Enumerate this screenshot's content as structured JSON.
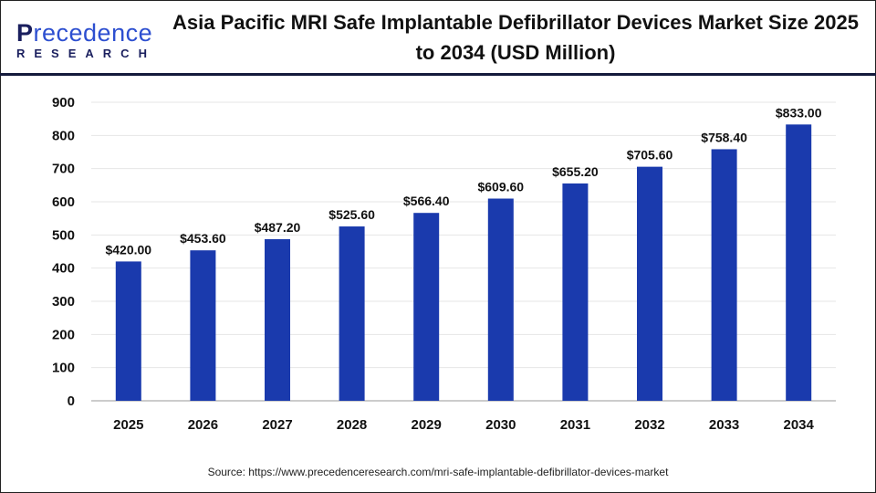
{
  "logo": {
    "line1_first": "P",
    "line1_rest": "recedence",
    "line2": "RESEARCH"
  },
  "title": "Asia Pacific MRI Safe Implantable Defibrillator Devices Market Size 2025 to 2034 (USD Million)",
  "source": "Source: https://www.precedenceresearch.com/mri-safe-implantable-defibrillator-devices-market",
  "colors": {
    "bar": "#1a3aad",
    "header_line": "#141a3c"
  },
  "chart_data": {
    "type": "bar",
    "title": "Asia Pacific MRI Safe Implantable Defibrillator Devices Market Size 2025 to 2034 (USD Million)",
    "categories": [
      "2025",
      "2026",
      "2027",
      "2028",
      "2029",
      "2030",
      "2031",
      "2032",
      "2033",
      "2034"
    ],
    "values": [
      420.0,
      453.6,
      487.2,
      525.6,
      566.4,
      609.6,
      655.2,
      705.6,
      758.4,
      833.0
    ],
    "data_labels": [
      "$420.00",
      "$453.60",
      "$487.20",
      "$525.60",
      "$566.40",
      "$609.60",
      "$655.20",
      "$705.60",
      "$758.40",
      "$833.00"
    ],
    "xlabel": "",
    "ylabel": "",
    "ylim": [
      0,
      900
    ],
    "yticks": [
      0,
      100,
      200,
      300,
      400,
      500,
      600,
      700,
      800,
      900
    ],
    "grid": true,
    "legend": "none"
  }
}
